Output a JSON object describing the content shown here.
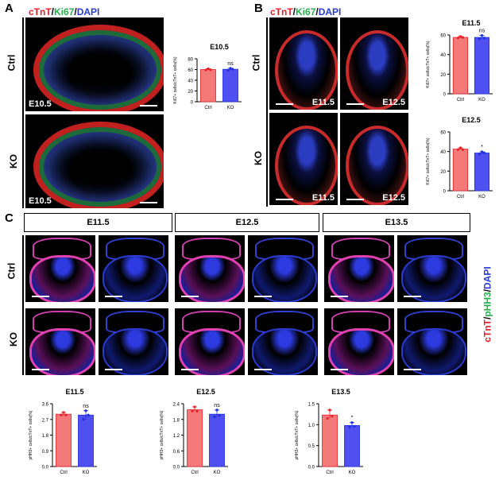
{
  "panels": {
    "A": {
      "label": "A",
      "stain": [
        "cTnT",
        "/",
        "Ki67",
        "/",
        "DAPI"
      ],
      "rows": [
        "Ctrl",
        "KO"
      ],
      "image_labels": [
        "E10.5",
        "E10.5"
      ]
    },
    "B": {
      "label": "B",
      "stain": [
        "cTnT",
        "/",
        "Ki67",
        "/",
        "DAPI"
      ],
      "rows": [
        "Ctrl",
        "KO"
      ],
      "image_labels": [
        "E11.5",
        "E12.5",
        "E11.5",
        "E12.5"
      ]
    },
    "C": {
      "label": "C",
      "stages": [
        "E11.5",
        "E12.5",
        "E13.5"
      ],
      "rows": [
        "Ctrl",
        "KO"
      ],
      "stain": [
        "cTnT",
        "/",
        "pHH3",
        "/",
        "DAPI"
      ]
    }
  },
  "colors": {
    "ctrl": "#f47a7a",
    "ko": "#5050f0",
    "ctrl_point": "#e8202a",
    "ko_point": "#2030e0"
  },
  "chart_data": [
    {
      "type": "bar",
      "title": "E10.5",
      "ylabel": "Ki67+ cells/cTnT+ cells(%)",
      "categories": [
        "Ctrl",
        "KO"
      ],
      "values": [
        60,
        60.5
      ],
      "points": [
        [
          59,
          61.5,
          59.5
        ],
        [
          58.5,
          62.5,
          60.5
        ]
      ],
      "ylim": [
        0,
        80
      ],
      "yticks": [
        "0",
        "20",
        "40",
        "60",
        "80"
      ],
      "significance": "ns"
    },
    {
      "type": "bar",
      "title": "E11.5",
      "ylabel": "Ki67+ cells/cTnT+ cells(%)",
      "categories": [
        "Ctrl",
        "KO"
      ],
      "values": [
        57.5,
        57.5
      ],
      "points": [
        [
          57,
          58.5,
          57.5
        ],
        [
          56,
          59.5,
          57
        ]
      ],
      "ylim": [
        0,
        60
      ],
      "yticks": [
        "0",
        "20",
        "40",
        "60"
      ],
      "significance": "ns"
    },
    {
      "type": "bar",
      "title": "E12.5",
      "ylabel": "Ki67+ cells/cTnT+ cells(%)",
      "categories": [
        "Ctrl",
        "KO"
      ],
      "values": [
        42.5,
        38.5
      ],
      "points": [
        [
          42,
          43.8,
          42
        ],
        [
          37.5,
          39.8,
          38.5
        ]
      ],
      "ylim": [
        0,
        60
      ],
      "yticks": [
        "0",
        "20",
        "40",
        "60"
      ],
      "significance": "*"
    },
    {
      "type": "bar",
      "title": "E11.5",
      "ylabel": "pHH3+ cells/cTnT+ cells(%)",
      "categories": [
        "Ctrl",
        "KO"
      ],
      "values": [
        3.0,
        2.95
      ],
      "points": [
        [
          2.95,
          3.1,
          2.95
        ],
        [
          2.7,
          3.2,
          2.95
        ]
      ],
      "ylim": [
        0,
        3.6
      ],
      "yticks": [
        "0.0",
        "0.9",
        "1.8",
        "2.7",
        "3.6"
      ],
      "significance": "ns"
    },
    {
      "type": "bar",
      "title": "E12.5",
      "ylabel": "pHH3+ cells/cTnT+ cells(%)",
      "categories": [
        "Ctrl",
        "KO"
      ],
      "values": [
        2.17,
        2.0
      ],
      "points": [
        [
          2.12,
          2.28,
          2.12
        ],
        [
          1.9,
          2.16,
          1.95
        ]
      ],
      "ylim": [
        0,
        2.4
      ],
      "yticks": [
        "0.0",
        "0.6",
        "1.2",
        "1.8",
        "2.4"
      ],
      "significance": "ns"
    },
    {
      "type": "bar",
      "title": "E13.5",
      "ylabel": "pHH3+ cells/cTnT+ cells(%)",
      "categories": [
        "Ctrl",
        "KO"
      ],
      "values": [
        1.23,
        0.98
      ],
      "points": [
        [
          1.15,
          1.35,
          1.2
        ],
        [
          0.94,
          1.05,
          0.96
        ]
      ],
      "ylim": [
        0,
        1.5
      ],
      "yticks": [
        "0.0",
        "0.5",
        "1.0",
        "1.5"
      ],
      "significance": "*"
    }
  ]
}
